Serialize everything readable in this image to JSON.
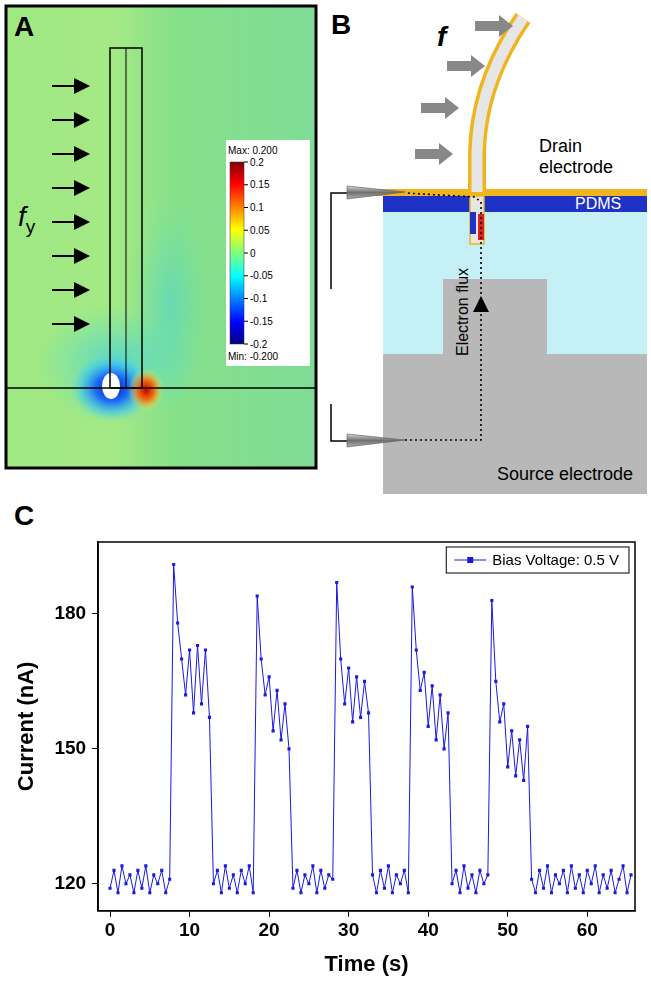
{
  "panel_a": {
    "label": "A",
    "force_label": {
      "symbol": "f",
      "subscript": "y"
    },
    "colorbar": {
      "range": [
        -0.2,
        0.2
      ],
      "ticks": [
        0.2,
        0.15,
        0.1,
        0.05,
        0,
        -0.05,
        -0.1,
        -0.15,
        -0.2
      ],
      "max_label": "Max: 0.200",
      "min_label": "Min: -0.200"
    }
  },
  "panel_b": {
    "label": "B",
    "force_label": "f",
    "labels": {
      "drain": "Drain electrode",
      "pdms": "PDMS",
      "flux": "Electron flux",
      "source": "Source electrode"
    }
  },
  "chart_data": {
    "panel_label": "C",
    "type": "line",
    "x_label": "Time (s)",
    "y_label": "Current (nA)",
    "x": [
      0,
      0.5,
      1,
      1.5,
      2,
      2.5,
      3,
      3.5,
      4,
      4.5,
      5,
      5.5,
      6,
      6.5,
      7,
      7.5,
      8,
      8.5,
      9,
      9.5,
      10,
      10.5,
      11,
      11.5,
      12,
      12.5,
      13,
      13.5,
      14,
      14.5,
      15,
      15.5,
      16,
      16.5,
      17,
      17.5,
      18,
      18.5,
      19,
      19.5,
      20,
      20.5,
      21,
      21.5,
      22,
      22.5,
      23,
      23.5,
      24,
      24.5,
      25,
      25.5,
      26,
      26.5,
      27,
      27.5,
      28,
      28.5,
      29,
      29.5,
      30,
      30.5,
      31,
      31.5,
      32,
      32.5,
      33,
      33.5,
      34,
      34.5,
      35,
      35.5,
      36,
      36.5,
      37,
      37.5,
      38,
      38.5,
      39,
      39.5,
      40,
      40.5,
      41,
      41.5,
      42,
      42.5,
      43,
      43.5,
      44,
      44.5,
      45,
      45.5,
      46,
      46.5,
      47,
      47.5,
      48,
      48.5,
      49,
      49.5,
      50,
      50.5,
      51,
      51.5,
      52,
      52.5,
      53,
      53.5,
      54,
      54.5,
      55,
      55.5,
      56,
      56.5,
      57,
      57.5,
      58,
      58.5,
      59,
      59.5,
      60,
      60.5,
      61,
      61.5,
      62,
      62.5,
      63,
      63.5,
      64,
      64.5,
      65,
      65.5
    ],
    "series": [
      {
        "name": "Bias Voltage: 0.5 V",
        "color": "#1a1adf",
        "marker": "square",
        "line_style": "solid",
        "values": [
          119,
          123,
          118,
          124,
          120,
          122,
          118,
          123,
          119,
          124,
          118,
          122,
          120,
          123,
          118,
          121,
          191,
          178,
          170,
          162,
          172,
          158,
          173,
          160,
          172,
          157,
          120,
          123,
          118,
          124,
          119,
          122,
          118,
          123,
          120,
          124,
          118,
          184,
          170,
          162,
          166,
          154,
          163,
          152,
          160,
          150,
          119,
          123,
          118,
          122,
          120,
          124,
          118,
          123,
          119,
          122,
          121,
          187,
          170,
          160,
          168,
          156,
          166,
          157,
          165,
          158,
          122,
          118,
          123,
          119,
          124,
          118,
          122,
          120,
          123,
          118,
          186,
          172,
          163,
          167,
          155,
          164,
          152,
          162,
          150,
          158,
          120,
          123,
          118,
          124,
          119,
          122,
          118,
          123,
          120,
          122,
          183,
          165,
          156,
          160,
          146,
          154,
          144,
          152,
          143,
          155,
          121,
          118,
          123,
          119,
          124,
          118,
          122,
          120,
          123,
          118,
          124,
          119,
          122,
          118,
          123,
          120,
          124,
          118,
          122,
          119,
          123,
          118,
          121,
          124,
          118,
          122
        ]
      }
    ],
    "xlim": [
      -1.5,
      66
    ],
    "xticks": [
      0,
      10,
      20,
      30,
      40,
      50,
      60
    ],
    "ylim": [
      114,
      196
    ],
    "yticks": [
      120,
      150,
      180
    ],
    "grid": false,
    "legend": "upper right"
  }
}
